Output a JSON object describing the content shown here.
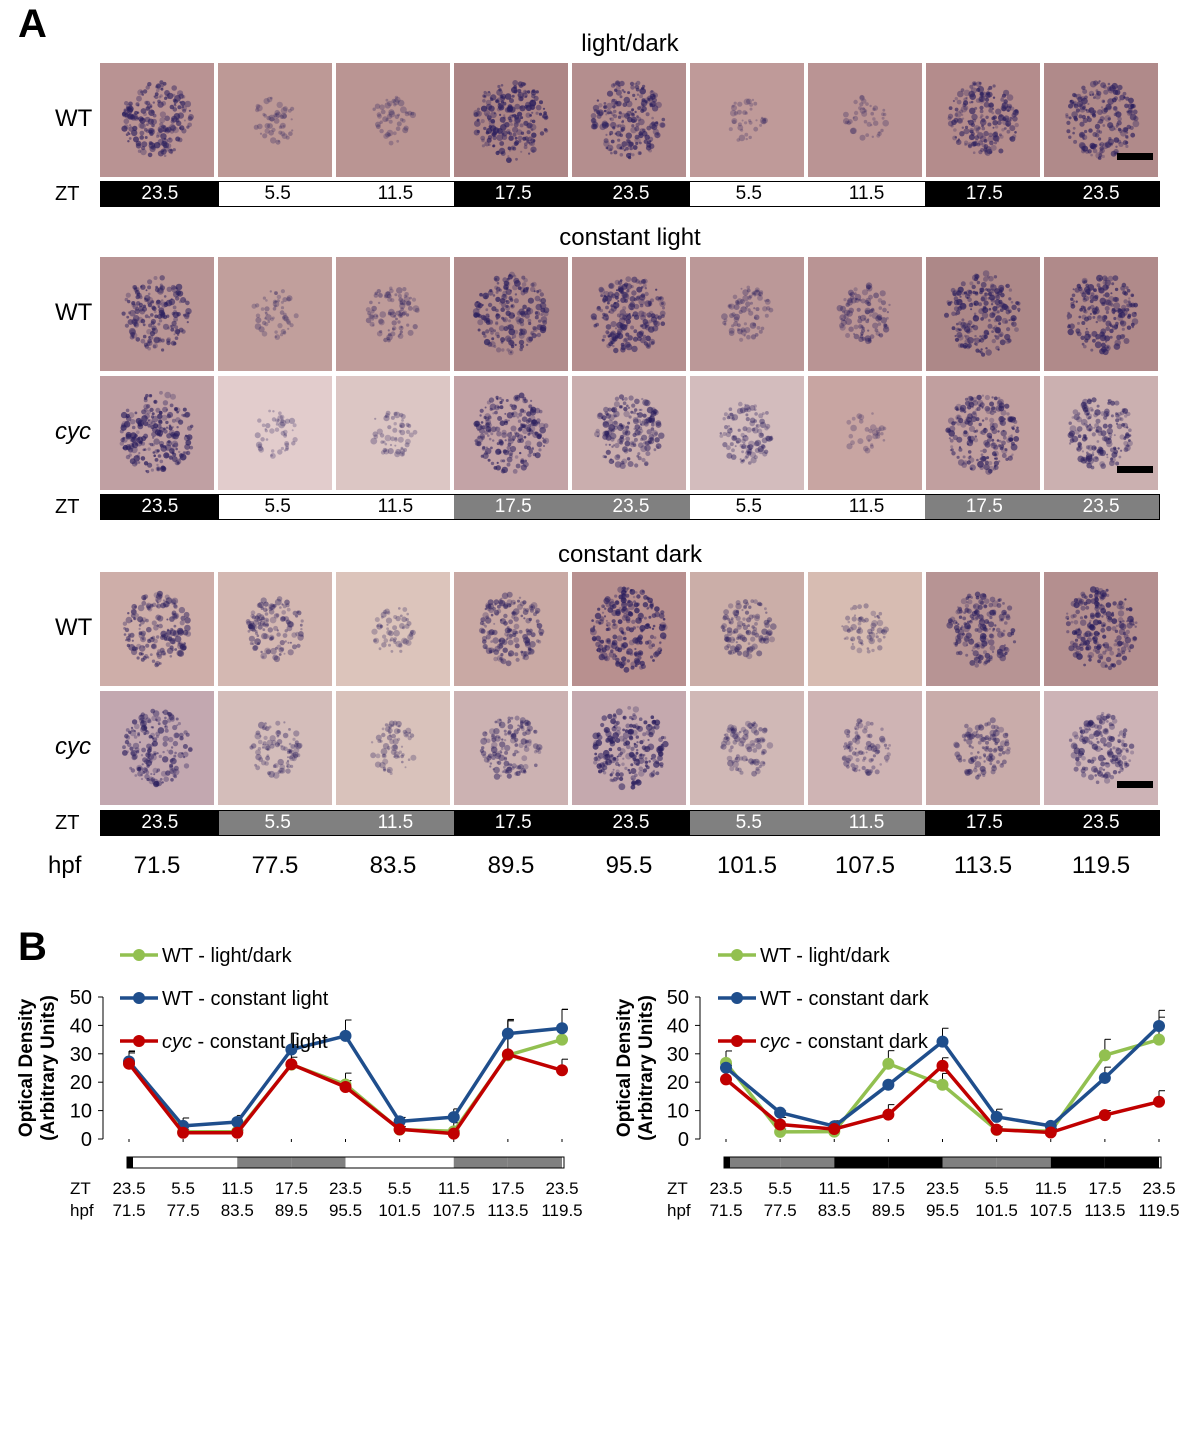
{
  "panel_a": {
    "letter": "A",
    "hpf_prefix": "hpf",
    "zt_prefix": "ZT",
    "hpf": [
      "71.5",
      "77.5",
      "83.5",
      "89.5",
      "95.5",
      "101.5",
      "107.5",
      "113.5",
      "119.5"
    ],
    "intensity": {
      "ld_wt": [
        0.75,
        0.12,
        0.12,
        0.85,
        0.8,
        0.08,
        0.1,
        0.75,
        0.78
      ],
      "ll_wt": [
        0.7,
        0.15,
        0.3,
        0.8,
        0.8,
        0.25,
        0.35,
        0.85,
        0.8
      ],
      "ll_cyc": [
        0.85,
        0.12,
        0.15,
        0.8,
        0.7,
        0.4,
        0.05,
        0.8,
        0.65
      ],
      "dd_wt": [
        0.65,
        0.45,
        0.15,
        0.6,
        0.9,
        0.4,
        0.2,
        0.7,
        0.85
      ],
      "dd_cyc": [
        0.7,
        0.3,
        0.2,
        0.5,
        0.85,
        0.3,
        0.3,
        0.4,
        0.6
      ]
    },
    "tile_bg": {
      "ld_wt": [
        "#b99393",
        "#bd9996",
        "#ba9593",
        "#ad8686",
        "#b48e8e",
        "#bf9a99",
        "#ba9494",
        "#b48c8c",
        "#b08a8a"
      ],
      "ll_wt": [
        "#b99595",
        "#c19f9c",
        "#bf9c9a",
        "#b18c8c",
        "#b58f8f",
        "#bb9898",
        "#b99494",
        "#ad8888",
        "#b08a8a"
      ],
      "ll_cyc": [
        "#c0a0a3",
        "#e2cccc",
        "#dcc6c4",
        "#c3a3a6",
        "#caaeae",
        "#d3bcbd",
        "#c8a5a2",
        "#c19f9f",
        "#cbb0b0"
      ],
      "dd_wt": [
        "#ceaea9",
        "#d4b8b2",
        "#dcc4bb",
        "#c9a9a4",
        "#b8908f",
        "#cbaea8",
        "#d7bcb2",
        "#b79494",
        "#b48f8f"
      ],
      "dd_cyc": [
        "#c3a8b0",
        "#d4bdba",
        "#d9c2bb",
        "#ccb2b2",
        "#c5a9ae",
        "#d0b8b6",
        "#cfb4b4",
        "#c9acaa",
        "#cdb3b6"
      ]
    },
    "sections": [
      {
        "title": "light/dark",
        "rows": [
          {
            "label": "WT",
            "italic": false,
            "key": "ld_wt"
          }
        ],
        "zt": [
          "23.5",
          "5.5",
          "11.5",
          "17.5",
          "23.5",
          "5.5",
          "11.5",
          "17.5",
          "23.5"
        ],
        "zt_shade": [
          "dark",
          "light",
          "light",
          "dark",
          "dark",
          "light",
          "light",
          "dark",
          "dark"
        ]
      },
      {
        "title": "constant light",
        "rows": [
          {
            "label": "WT",
            "italic": false,
            "key": "ll_wt"
          },
          {
            "label": "cyc",
            "italic": true,
            "key": "ll_cyc"
          }
        ],
        "zt": [
          "23.5",
          "5.5",
          "11.5",
          "17.5",
          "23.5",
          "5.5",
          "11.5",
          "17.5",
          "23.5"
        ],
        "zt_shade": [
          "dark",
          "light",
          "light",
          "gray",
          "gray",
          "light",
          "light",
          "gray",
          "gray"
        ]
      },
      {
        "title": "constant dark",
        "rows": [
          {
            "label": "WT",
            "italic": false,
            "key": "dd_wt"
          },
          {
            "label": "cyc",
            "italic": true,
            "key": "dd_cyc"
          }
        ],
        "zt": [
          "23.5",
          "5.5",
          "11.5",
          "17.5",
          "23.5",
          "5.5",
          "11.5",
          "17.5",
          "23.5"
        ],
        "zt_shade": [
          "dark",
          "gray",
          "gray",
          "dark",
          "dark",
          "gray",
          "gray",
          "dark",
          "dark"
        ]
      }
    ]
  },
  "panel_b": {
    "letter": "B",
    "zt_prefix": "ZT",
    "hpf_prefix": "hpf",
    "colors": {
      "green": "#92c050",
      "blue": "#1f4e8c",
      "red": "#c00000"
    },
    "chart_data": [
      {
        "type": "line",
        "ylabel_line1": "Optical Density",
        "ylabel_line2": "(Arbitrary Units)",
        "ylim": [
          0,
          50
        ],
        "yticks": [
          "0",
          "10",
          "20",
          "30",
          "40",
          "50"
        ],
        "zt": [
          "23.5",
          "5.5",
          "11.5",
          "17.5",
          "23.5",
          "5.5",
          "11.5",
          "17.5",
          "23.5"
        ],
        "hpf": [
          "71.5",
          "77.5",
          "83.5",
          "89.5",
          "95.5",
          "101.5",
          "107.5",
          "113.5",
          "119.5"
        ],
        "bar_shade": [
          "dark",
          "light",
          "light",
          "gray",
          "gray",
          "light",
          "light",
          "gray",
          "gray"
        ],
        "series": [
          {
            "name_main": "WT",
            "name_rest": " - light/dark",
            "italic_main": false,
            "color": "green",
            "values": [
              26.8,
              2.5,
              2.6,
              26.2,
              19.2,
              3.3,
              2.7,
              29.5,
              35.0
            ],
            "errors": [
              4.0,
              0.8,
              0.8,
              7.0,
              4.0,
              1.0,
              3.0,
              12.5,
              10.7
            ]
          },
          {
            "name_main": "WT",
            "name_rest": " - constant light",
            "italic_main": false,
            "color": "blue",
            "values": [
              27.3,
              4.6,
              6.0,
              31.5,
              36.3,
              6.2,
              7.7,
              37.1,
              39.0
            ],
            "errors": [
              3.7,
              2.8,
              2.3,
              5.8,
              5.6,
              1.4,
              2.9,
              5.0,
              6.6
            ]
          },
          {
            "name_main": "cyc",
            "name_rest": " - constant light",
            "italic_main": true,
            "color": "red",
            "values": [
              26.5,
              2.2,
              2.2,
              26.3,
              18.3,
              3.4,
              1.9,
              29.8,
              24.2
            ],
            "errors": [
              3.8,
              0.8,
              0.8,
              2.5,
              2.3,
              1.0,
              1.0,
              11.8,
              3.9
            ]
          }
        ]
      },
      {
        "type": "line",
        "ylabel_line1": "Optical Density",
        "ylabel_line2": "(Arbitrary Units)",
        "ylim": [
          0,
          50
        ],
        "yticks": [
          "0",
          "10",
          "20",
          "30",
          "40",
          "50"
        ],
        "zt": [
          "23.5",
          "5.5",
          "11.5",
          "17.5",
          "23.5",
          "5.5",
          "11.5",
          "17.5",
          "23.5"
        ],
        "hpf": [
          "71.5",
          "77.5",
          "83.5",
          "89.5",
          "95.5",
          "101.5",
          "107.5",
          "113.5",
          "119.5"
        ],
        "bar_shade": [
          "dark",
          "gray",
          "gray",
          "dark",
          "dark",
          "gray",
          "gray",
          "dark",
          "dark"
        ],
        "series": [
          {
            "name_main": "WT",
            "name_rest": " - light/dark",
            "italic_main": false,
            "color": "green",
            "values": [
              26.8,
              2.5,
              2.6,
              26.5,
              19.1,
              3.2,
              2.7,
              29.5,
              35.0
            ],
            "errors": [
              4.2,
              1.0,
              1.0,
              4.6,
              4.0,
              1.0,
              1.0,
              5.6,
              7.9
            ]
          },
          {
            "name_main": "WT",
            "name_rest": " - constant dark",
            "italic_main": false,
            "color": "blue",
            "values": [
              25.1,
              9.3,
              4.5,
              19.1,
              34.3,
              7.8,
              4.6,
              21.5,
              39.8
            ],
            "errors": [
              1.5,
              0.6,
              1.9,
              1.5,
              4.7,
              2.7,
              1.4,
              3.8,
              5.5
            ]
          },
          {
            "name_main": "cyc",
            "name_rest": " - constant dark",
            "italic_main": true,
            "color": "red",
            "values": [
              21.0,
              5.1,
              3.5,
              8.6,
              25.8,
              3.3,
              2.3,
              8.4,
              13.1
            ],
            "errors": [
              5.0,
              2.5,
              0.7,
              3.5,
              2.8,
              1.0,
              0.6,
              1.6,
              3.9
            ]
          }
        ]
      }
    ]
  }
}
